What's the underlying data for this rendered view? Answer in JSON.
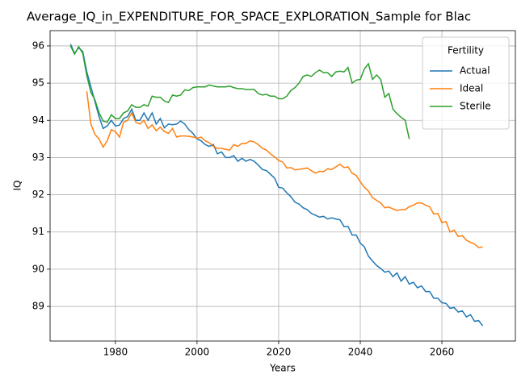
{
  "chart_data": {
    "type": "line",
    "title": "Average_IQ_in_EXPENDITURE_FOR_SPACE_EXPLORATION_Sample for Blac",
    "xlabel": "Years",
    "ylabel": "IQ",
    "x": [
      1969,
      1970,
      1971,
      1972,
      1973,
      1974,
      1975,
      1976,
      1977,
      1978,
      1979,
      1980,
      1981,
      1982,
      1983,
      1984,
      1985,
      1986,
      1987,
      1988,
      1989,
      1990,
      1991,
      1992,
      1993,
      1994,
      1995,
      1996,
      1997,
      1998,
      1999,
      2000,
      2001,
      2002,
      2003,
      2004,
      2005,
      2006,
      2007,
      2008,
      2009,
      2010,
      2011,
      2012,
      2013,
      2014,
      2015,
      2016,
      2017,
      2018,
      2019,
      2020,
      2021,
      2022,
      2023,
      2024,
      2025,
      2026,
      2027,
      2028,
      2029,
      2030,
      2031,
      2032,
      2033,
      2034,
      2035,
      2036,
      2037,
      2038,
      2039,
      2040,
      2041,
      2042,
      2043,
      2044,
      2045,
      2046,
      2047,
      2048,
      2049,
      2050,
      2051,
      2052,
      2053,
      2054,
      2055,
      2056,
      2057,
      2058,
      2059,
      2060,
      2061,
      2062,
      2063,
      2064,
      2065,
      2066,
      2067,
      2068,
      2069,
      2070
    ],
    "series": [
      {
        "name": "Actual",
        "color": "#1f77b4",
        "values": [
          96.05,
          95.8,
          95.95,
          95.85,
          95.3,
          94.9,
          94.5,
          94.1,
          93.78,
          93.85,
          94.0,
          93.85,
          93.87,
          94.05,
          94.1,
          94.3,
          94.0,
          94.0,
          94.2,
          94.0,
          94.2,
          93.9,
          94.05,
          93.8,
          93.9,
          93.88,
          93.9,
          93.98,
          93.9,
          93.75,
          93.65,
          93.5,
          93.45,
          93.35,
          93.3,
          93.35,
          93.1,
          93.15,
          93.0,
          93.0,
          93.05,
          92.9,
          92.98,
          92.9,
          92.95,
          92.9,
          92.8,
          92.68,
          92.65,
          92.55,
          92.45,
          92.2,
          92.18,
          92.05,
          91.95,
          91.8,
          91.75,
          91.65,
          91.6,
          91.5,
          91.45,
          91.4,
          91.42,
          91.35,
          91.38,
          91.35,
          91.33,
          91.15,
          91.15,
          90.92,
          90.92,
          90.7,
          90.6,
          90.35,
          90.22,
          90.1,
          90.02,
          89.92,
          89.95,
          89.8,
          89.9,
          89.68,
          89.8,
          89.6,
          89.65,
          89.5,
          89.55,
          89.4,
          89.4,
          89.22,
          89.22,
          89.1,
          89.08,
          88.95,
          88.97,
          88.85,
          88.88,
          88.72,
          88.78,
          88.6,
          88.62,
          88.48
        ]
      },
      {
        "name": "Ideal",
        "color": "#ff7f0e",
        "values": [
          null,
          null,
          null,
          null,
          94.78,
          93.9,
          93.62,
          93.5,
          93.28,
          93.45,
          93.75,
          93.7,
          93.55,
          93.95,
          94.0,
          94.2,
          93.95,
          93.9,
          94.0,
          93.78,
          93.88,
          93.72,
          93.82,
          93.7,
          93.65,
          93.78,
          93.55,
          93.58,
          93.58,
          93.57,
          93.55,
          93.52,
          93.55,
          93.45,
          93.4,
          93.3,
          93.25,
          93.25,
          93.22,
          93.2,
          93.35,
          93.3,
          93.38,
          93.38,
          93.45,
          93.42,
          93.35,
          93.25,
          93.2,
          93.1,
          93.02,
          92.92,
          92.88,
          92.72,
          92.73,
          92.67,
          92.68,
          92.7,
          92.72,
          92.65,
          92.58,
          92.63,
          92.62,
          92.7,
          92.68,
          92.75,
          92.82,
          92.73,
          92.75,
          92.58,
          92.52,
          92.35,
          92.2,
          92.1,
          91.92,
          91.85,
          91.78,
          91.65,
          91.67,
          91.62,
          91.58,
          91.6,
          91.6,
          91.68,
          91.72,
          91.78,
          91.78,
          91.72,
          91.68,
          91.48,
          91.5,
          91.25,
          91.28,
          91.0,
          91.05,
          90.88,
          90.9,
          90.78,
          90.72,
          90.68,
          90.58,
          90.6
        ]
      },
      {
        "name": "Sterile",
        "color": "#2ca02c",
        "values": [
          96.0,
          95.78,
          95.98,
          95.8,
          95.2,
          94.75,
          94.55,
          94.2,
          93.98,
          93.95,
          94.15,
          94.05,
          94.05,
          94.2,
          94.25,
          94.42,
          94.35,
          94.35,
          94.42,
          94.38,
          94.65,
          94.62,
          94.62,
          94.52,
          94.48,
          94.68,
          94.65,
          94.68,
          94.82,
          94.8,
          94.88,
          94.9,
          94.9,
          94.9,
          94.95,
          94.92,
          94.9,
          94.9,
          94.9,
          94.92,
          94.88,
          94.85,
          94.85,
          94.83,
          94.83,
          94.83,
          94.72,
          94.68,
          94.7,
          94.65,
          94.65,
          94.58,
          94.58,
          94.65,
          94.8,
          94.88,
          95.0,
          95.18,
          95.22,
          95.18,
          95.28,
          95.35,
          95.28,
          95.28,
          95.18,
          95.3,
          95.32,
          95.3,
          95.42,
          95.0,
          95.08,
          95.1,
          95.38,
          95.52,
          95.1,
          95.22,
          95.1,
          94.62,
          94.72,
          94.3,
          94.18,
          94.08,
          94.0,
          93.5,
          null,
          null,
          null,
          null,
          null,
          null,
          null,
          null,
          null,
          null,
          null,
          null,
          null,
          null,
          null,
          null,
          null,
          null
        ]
      }
    ],
    "xlim": [
      1964,
      2078
    ],
    "ylim": [
      88.07,
      96.41
    ],
    "xticks": [
      1980,
      2000,
      2020,
      2040,
      2060
    ],
    "yticks": [
      89,
      90,
      91,
      92,
      93,
      94,
      95,
      96
    ],
    "grid": true,
    "legend_title": "Fertility",
    "legend": "upper right"
  }
}
